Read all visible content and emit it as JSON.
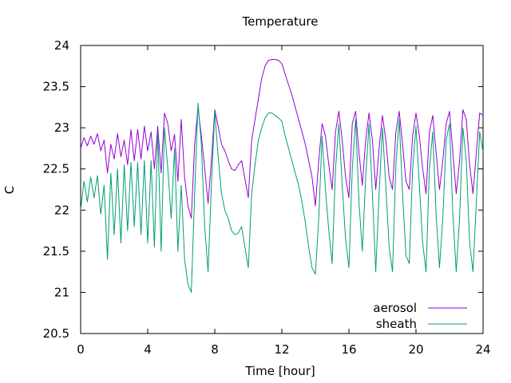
{
  "chart_data": {
    "type": "line",
    "title": "Temperature",
    "xlabel": "Time [hour]",
    "ylabel": "C",
    "xlim": [
      0,
      24
    ],
    "ylim": [
      20.5,
      24
    ],
    "xticks": [
      0,
      4,
      8,
      12,
      16,
      20,
      24
    ],
    "xtick_labels": [
      "0",
      "4",
      "8",
      "12",
      "16",
      "20",
      "24"
    ],
    "yticks": [
      20.5,
      21,
      21.5,
      22,
      22.5,
      23,
      23.5,
      24
    ],
    "ytick_labels": [
      "20.5",
      "21",
      "21.5",
      "22",
      "22.5",
      "23",
      "23.5",
      "24"
    ],
    "grid": false,
    "legend_position": "bottom-right",
    "series": [
      {
        "name": "aerosol",
        "color": "#9400d3",
        "x": [
          0,
          0.2,
          0.4,
          0.6,
          0.8,
          1.0,
          1.2,
          1.4,
          1.6,
          1.8,
          2.0,
          2.2,
          2.4,
          2.6,
          2.8,
          3.0,
          3.2,
          3.4,
          3.6,
          3.8,
          4.0,
          4.2,
          4.4,
          4.6,
          4.8,
          5.0,
          5.2,
          5.4,
          5.6,
          5.8,
          6.0,
          6.2,
          6.4,
          6.6,
          6.8,
          7.0,
          7.2,
          7.4,
          7.6,
          7.8,
          8.0,
          8.2,
          8.4,
          8.6,
          8.8,
          9.0,
          9.2,
          9.4,
          9.6,
          9.8,
          10.0,
          10.2,
          10.4,
          10.6,
          10.8,
          11.0,
          11.2,
          11.4,
          11.6,
          11.8,
          12.0,
          12.2,
          12.4,
          12.6,
          12.8,
          13.0,
          13.2,
          13.4,
          13.6,
          13.8,
          14.0,
          14.2,
          14.4,
          14.6,
          14.8,
          15.0,
          15.2,
          15.4,
          15.6,
          15.8,
          16.0,
          16.2,
          16.4,
          16.6,
          16.8,
          17.0,
          17.2,
          17.4,
          17.6,
          17.8,
          18.0,
          18.2,
          18.4,
          18.6,
          18.8,
          19.0,
          19.2,
          19.4,
          19.6,
          19.8,
          20.0,
          20.2,
          20.4,
          20.6,
          20.8,
          21.0,
          21.2,
          21.4,
          21.6,
          21.8,
          22.0,
          22.2,
          22.4,
          22.6,
          22.8,
          23.0,
          23.2,
          23.4,
          23.6,
          23.8,
          24.0
        ],
        "y": [
          22.75,
          22.88,
          22.78,
          22.9,
          22.8,
          22.93,
          22.72,
          22.85,
          22.45,
          22.8,
          22.62,
          22.93,
          22.65,
          22.85,
          22.55,
          22.98,
          22.6,
          22.98,
          22.62,
          23.02,
          22.72,
          22.95,
          22.5,
          23.02,
          22.45,
          23.18,
          23.05,
          22.72,
          22.92,
          22.35,
          23.1,
          22.4,
          22.05,
          21.9,
          22.8,
          23.25,
          22.9,
          22.5,
          22.08,
          22.6,
          23.22,
          23.02,
          22.8,
          22.72,
          22.6,
          22.5,
          22.48,
          22.55,
          22.6,
          22.38,
          22.15,
          22.85,
          23.1,
          23.35,
          23.6,
          23.75,
          23.82,
          23.83,
          23.83,
          23.82,
          23.78,
          23.65,
          23.52,
          23.4,
          23.25,
          23.1,
          22.95,
          22.8,
          22.6,
          22.4,
          22.05,
          22.6,
          23.05,
          22.9,
          22.55,
          22.25,
          22.95,
          23.2,
          22.85,
          22.4,
          22.15,
          23.05,
          23.2,
          22.7,
          22.3,
          22.85,
          23.18,
          22.85,
          22.25,
          22.75,
          23.15,
          22.85,
          22.4,
          22.25,
          22.95,
          23.2,
          22.8,
          22.35,
          22.25,
          22.9,
          23.18,
          22.9,
          22.5,
          22.2,
          22.95,
          23.15,
          22.7,
          22.25,
          22.6,
          23.05,
          23.2,
          22.7,
          22.2,
          22.6,
          23.22,
          23.1,
          22.55,
          22.2,
          22.7,
          23.18,
          23.15
        ]
      },
      {
        "name": "sheath",
        "color": "#009e73",
        "x": [
          0,
          0.2,
          0.4,
          0.6,
          0.8,
          1.0,
          1.2,
          1.4,
          1.6,
          1.8,
          2.0,
          2.2,
          2.4,
          2.6,
          2.8,
          3.0,
          3.2,
          3.4,
          3.6,
          3.8,
          4.0,
          4.2,
          4.4,
          4.6,
          4.8,
          5.0,
          5.2,
          5.4,
          5.6,
          5.8,
          6.0,
          6.2,
          6.4,
          6.6,
          6.8,
          7.0,
          7.2,
          7.4,
          7.6,
          7.8,
          8.0,
          8.2,
          8.4,
          8.6,
          8.8,
          9.0,
          9.2,
          9.4,
          9.6,
          9.8,
          10.0,
          10.2,
          10.4,
          10.6,
          10.8,
          11.0,
          11.2,
          11.4,
          11.6,
          11.8,
          12.0,
          12.2,
          12.4,
          12.6,
          12.8,
          13.0,
          13.2,
          13.4,
          13.6,
          13.8,
          14.0,
          14.2,
          14.4,
          14.6,
          14.8,
          15.0,
          15.2,
          15.4,
          15.6,
          15.8,
          16.0,
          16.2,
          16.4,
          16.6,
          16.8,
          17.0,
          17.2,
          17.4,
          17.6,
          17.8,
          18.0,
          18.2,
          18.4,
          18.6,
          18.8,
          19.0,
          19.2,
          19.4,
          19.6,
          19.8,
          20.0,
          20.2,
          20.4,
          20.6,
          20.8,
          21.0,
          21.2,
          21.4,
          21.6,
          21.8,
          22.0,
          22.2,
          22.4,
          22.6,
          22.8,
          23.0,
          23.2,
          23.4,
          23.6,
          23.8,
          24.0
        ],
        "y": [
          22.0,
          22.35,
          22.1,
          22.4,
          22.15,
          22.42,
          21.95,
          22.3,
          21.4,
          22.45,
          21.7,
          22.5,
          21.6,
          22.55,
          21.75,
          22.58,
          21.8,
          22.58,
          21.7,
          22.6,
          21.6,
          22.6,
          21.55,
          22.95,
          21.5,
          23.0,
          22.5,
          21.9,
          22.75,
          21.5,
          22.3,
          21.4,
          21.1,
          21.0,
          22.2,
          23.3,
          22.8,
          21.8,
          21.25,
          22.3,
          23.2,
          22.65,
          22.2,
          22.0,
          21.9,
          21.75,
          21.7,
          21.72,
          21.8,
          21.55,
          21.3,
          22.2,
          22.55,
          22.85,
          23.0,
          23.12,
          23.18,
          23.18,
          23.15,
          23.12,
          23.08,
          22.9,
          22.75,
          22.6,
          22.45,
          22.3,
          22.1,
          21.85,
          21.55,
          21.3,
          21.22,
          21.9,
          22.9,
          22.25,
          21.75,
          21.35,
          22.5,
          23.05,
          22.3,
          21.65,
          21.3,
          22.5,
          23.1,
          22.1,
          21.5,
          22.4,
          23.05,
          22.2,
          21.25,
          22.2,
          23.0,
          22.3,
          21.55,
          21.25,
          22.55,
          23.1,
          22.2,
          21.45,
          21.35,
          22.5,
          23.02,
          22.3,
          21.6,
          21.25,
          22.5,
          22.95,
          21.95,
          21.3,
          21.9,
          22.85,
          23.05,
          21.95,
          21.25,
          21.9,
          23.0,
          22.6,
          21.6,
          21.25,
          22.1,
          22.95,
          22.7
        ]
      }
    ]
  }
}
